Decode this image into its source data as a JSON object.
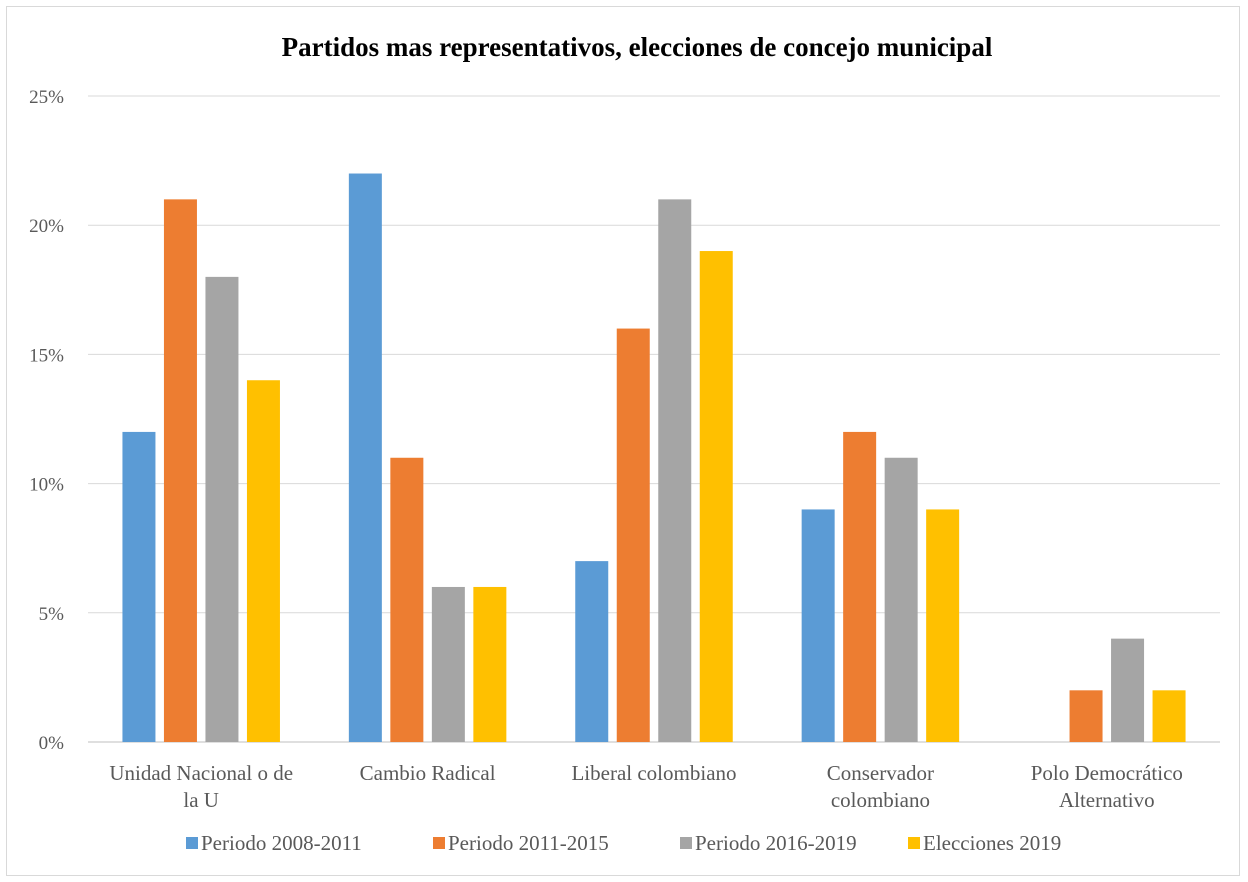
{
  "chart_data": {
    "type": "bar",
    "title": "Partidos mas representativos, elecciones de concejo municipal",
    "categories": [
      [
        "Unidad Nacional o de",
        "la U"
      ],
      [
        "Cambio Radical"
      ],
      [
        "Liberal colombiano"
      ],
      [
        "Conservador",
        "colombiano"
      ],
      [
        "Polo Democrático",
        "Alternativo"
      ]
    ],
    "series": [
      {
        "name": "Periodo 2008-2011",
        "color": "#5b9bd5",
        "values": [
          0.12,
          0.22,
          0.07,
          0.09,
          0
        ]
      },
      {
        "name": "Periodo 2011-2015",
        "color": "#ed7d31",
        "values": [
          0.21,
          0.11,
          0.16,
          0.12,
          0.02
        ]
      },
      {
        "name": "Periodo 2016-2019",
        "color": "#a5a5a5",
        "values": [
          0.18,
          0.06,
          0.21,
          0.11,
          0.04
        ]
      },
      {
        "name": "Elecciones 2019",
        "color": "#ffc000",
        "values": [
          0.14,
          0.06,
          0.19,
          0.09,
          0.02
        ]
      }
    ],
    "ylim": [
      0,
      0.25
    ],
    "yticks": [
      "0%",
      "5%",
      "10%",
      "15%",
      "20%",
      "25%"
    ],
    "grid": true,
    "legend_position": "bottom"
  }
}
